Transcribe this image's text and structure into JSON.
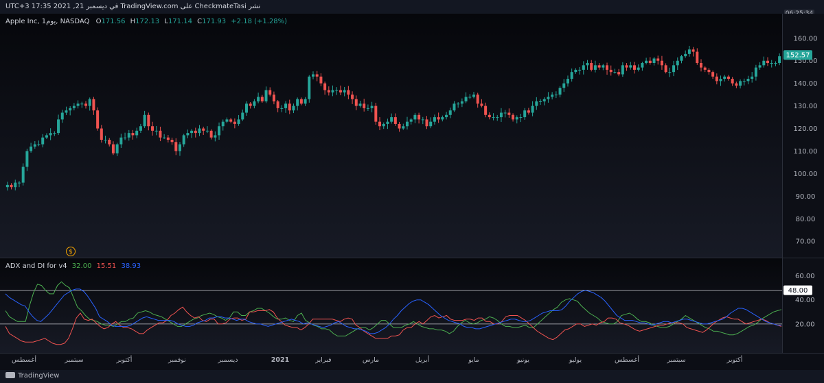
{
  "header": {
    "title": "نشر CheckmateTasi على TradingView.com في ديسمبر 21, 2021 17:35 UTC+3",
    "clock": "06:25:34"
  },
  "legend": {
    "symbol": "Apple Inc, 1يوم, NASDAQ",
    "o_label": "O",
    "o_value": "171.56",
    "h_label": "H",
    "h_value": "172.13",
    "l_label": "L",
    "l_value": "171.14",
    "c_label": "C",
    "c_value": "171.93",
    "change": "+2.18 (+1.28%)"
  },
  "indicator": {
    "name": "ADX and DI for v4",
    "adx": "32.00",
    "di_minus": "15.51",
    "di_plus": "38.93"
  },
  "footer": {
    "brand": "TradingView"
  },
  "colors": {
    "up": "#26a69a",
    "down": "#ef5350",
    "adx": "#4caf50",
    "dim": "#f05350",
    "dip": "#2962ff"
  },
  "chart_data": [
    {
      "type": "candlestick",
      "title": "Apple Inc, 1يوم, NASDAQ",
      "ylim": [
        64,
        166
      ],
      "y_ticks": [
        "160.00",
        "150.00",
        "140.00",
        "130.00",
        "120.00",
        "110.00",
        "100.00",
        "90.00",
        "80.00",
        "70.00"
      ],
      "y_tick_values": [
        160,
        150,
        140,
        130,
        120,
        110,
        100,
        90,
        80,
        70
      ],
      "last_price": "152.57",
      "x_labels": [
        "أغسطس",
        "سبتمبر",
        "أكتوبر",
        "نوفمبر",
        "ديسمبر",
        "2021",
        "فبراير",
        "مارس",
        "أبريل",
        "مايو",
        "يونيو",
        "يوليو",
        "أغسطس",
        "سبتمبر",
        "أكتوبر"
      ],
      "closes": [
        95,
        94,
        96,
        96,
        103,
        110,
        112,
        113,
        113,
        116,
        117,
        118,
        118,
        124,
        127,
        128,
        129,
        130,
        131,
        131,
        130,
        133,
        128,
        120,
        115,
        115,
        113,
        109,
        113,
        116,
        116,
        118,
        117,
        119,
        121,
        126,
        121,
        119,
        119,
        116,
        116,
        115,
        114,
        110,
        113,
        117,
        118,
        119,
        118,
        120,
        119,
        119,
        116,
        117,
        121,
        123,
        124,
        123,
        122,
        124,
        127,
        131,
        130,
        132,
        134,
        132,
        137,
        135,
        132,
        129,
        129,
        131,
        128,
        130,
        133,
        131,
        133,
        143,
        144,
        143,
        140,
        137,
        136,
        137,
        137,
        136,
        137,
        135,
        133,
        130,
        131,
        129,
        129,
        130,
        123,
        121,
        122,
        123,
        125,
        122,
        120,
        121,
        123,
        124,
        126,
        124,
        124,
        121,
        123,
        125,
        124,
        125,
        126,
        128,
        131,
        131,
        132,
        134,
        134,
        135,
        131,
        130,
        126,
        125,
        125,
        125,
        127,
        127,
        126,
        124,
        125,
        125,
        128,
        127,
        130,
        132,
        132,
        133,
        134,
        135,
        135,
        138,
        140,
        142,
        145,
        146,
        146,
        148,
        149,
        146,
        148,
        147,
        148,
        146,
        145,
        145,
        144,
        148,
        147,
        148,
        146,
        147,
        149,
        150,
        149,
        151,
        150,
        148,
        145,
        145,
        148,
        150,
        152,
        153,
        155,
        154,
        149,
        147,
        146,
        145,
        143,
        141,
        142,
        143,
        142,
        140,
        139,
        141,
        141,
        142,
        143,
        147,
        148,
        150,
        149,
        149,
        149,
        152
      ]
    },
    {
      "type": "line",
      "title": "ADX and DI for v4",
      "ylim": [
        0,
        66
      ],
      "y_ticks": [
        "60.00",
        "40.00",
        "20.00"
      ],
      "y_tick_values": [
        60,
        40,
        20
      ],
      "levels": [
        48,
        20
      ],
      "level_label": "48.00",
      "series": [
        {
          "name": "32.00",
          "values": [
            31,
            26,
            24,
            22,
            22,
            22,
            35,
            46,
            53,
            52,
            48,
            45,
            45,
            52,
            55,
            52,
            50,
            42,
            34,
            31,
            27,
            24,
            23,
            22,
            20,
            19,
            19,
            18,
            20,
            22,
            22,
            24,
            25,
            29,
            30,
            31,
            30,
            28,
            27,
            26,
            24,
            22,
            20,
            18,
            18,
            20,
            22,
            24,
            25,
            27,
            28,
            29,
            28,
            26,
            25,
            23,
            25,
            30,
            30,
            27,
            27,
            30,
            31,
            33,
            33,
            31,
            29,
            26,
            24,
            24,
            25,
            23,
            22,
            27,
            29,
            23,
            21,
            19,
            18,
            16,
            16,
            15,
            12,
            10,
            10,
            10,
            12,
            14,
            16,
            17,
            17,
            15,
            17,
            20,
            23,
            23,
            20,
            17,
            17,
            17,
            19,
            20,
            22,
            20,
            18,
            17,
            16,
            16,
            15,
            15,
            14,
            12,
            14,
            18,
            21,
            23,
            21,
            20,
            21,
            23,
            24,
            26,
            25,
            23,
            20,
            18,
            18,
            17,
            17,
            18,
            19,
            17,
            17,
            20,
            23,
            26,
            29,
            32,
            34,
            38,
            40,
            41,
            40,
            39,
            35,
            32,
            29,
            27,
            25,
            22,
            21,
            20,
            20,
            22,
            27,
            28,
            29,
            27,
            24,
            22,
            22,
            21,
            19,
            18,
            17,
            17,
            18,
            20,
            22,
            24,
            27,
            25,
            23,
            21,
            19,
            17,
            16,
            14,
            14,
            13,
            12,
            11,
            11,
            12,
            14,
            16,
            18,
            19,
            21,
            24,
            26,
            28,
            30,
            31,
            32
          ]
        },
        {
          "name": "15.51",
          "values": [
            18,
            12,
            10,
            8,
            6,
            5,
            5,
            5,
            6,
            7,
            8,
            6,
            4,
            3,
            3,
            4,
            8,
            16,
            25,
            29,
            24,
            23,
            24,
            21,
            18,
            16,
            17,
            20,
            22,
            19,
            17,
            17,
            16,
            14,
            12,
            12,
            15,
            17,
            19,
            21,
            21,
            23,
            27,
            29,
            32,
            34,
            30,
            27,
            25,
            26,
            23,
            22,
            24,
            24,
            20,
            20,
            21,
            24,
            25,
            25,
            23,
            24,
            30,
            30,
            31,
            31,
            31,
            32,
            30,
            25,
            22,
            19,
            18,
            17,
            17,
            15,
            17,
            20,
            24,
            24,
            24,
            24,
            24,
            24,
            23,
            22,
            24,
            25,
            24,
            19,
            17,
            14,
            12,
            10,
            8,
            8,
            8,
            8,
            10,
            10,
            11,
            15,
            17,
            17,
            20,
            22,
            20,
            23,
            26,
            27,
            25,
            26,
            27,
            24,
            23,
            23,
            23,
            24,
            24,
            23,
            25,
            25,
            22,
            22,
            20,
            20,
            22,
            26,
            27,
            27,
            27,
            25,
            23,
            20,
            17,
            14,
            12,
            10,
            8,
            7,
            9,
            12,
            15,
            16,
            18,
            20,
            20,
            18,
            19,
            20,
            19,
            21,
            22,
            25,
            25,
            24,
            21,
            20,
            19,
            17,
            15,
            14,
            15,
            16,
            17,
            18,
            19,
            19,
            20,
            21,
            21,
            21,
            20,
            17,
            16,
            15,
            14,
            13,
            15,
            18,
            21,
            23,
            25,
            26,
            25,
            24,
            24,
            22,
            20,
            21,
            22,
            23,
            24,
            23,
            21,
            20,
            19,
            18
          ]
        },
        {
          "name": "38.93",
          "values": [
            45,
            42,
            40,
            38,
            36,
            35,
            30,
            26,
            23,
            22,
            25,
            28,
            32,
            36,
            40,
            44,
            46,
            48,
            49,
            49,
            47,
            43,
            38,
            33,
            26,
            24,
            22,
            19,
            18,
            18,
            18,
            18,
            19,
            21,
            23,
            25,
            26,
            25,
            24,
            23,
            23,
            23,
            23,
            22,
            20,
            19,
            18,
            18,
            19,
            21,
            22,
            23,
            25,
            25,
            26,
            26,
            25,
            25,
            24,
            23,
            24,
            24,
            22,
            21,
            20,
            20,
            19,
            18,
            19,
            20,
            21,
            22,
            23,
            24,
            23,
            22,
            20,
            21,
            20,
            19,
            18,
            17,
            18,
            19,
            21,
            22,
            20,
            18,
            17,
            16,
            16,
            15,
            14,
            12,
            12,
            13,
            15,
            17,
            20,
            24,
            27,
            31,
            34,
            37,
            39,
            40,
            40,
            38,
            36,
            33,
            30,
            27,
            25,
            23,
            22,
            21,
            20,
            18,
            17,
            17,
            16,
            16,
            17,
            18,
            19,
            20,
            21,
            22,
            23,
            24,
            24,
            23,
            22,
            22,
            23,
            25,
            27,
            29,
            30,
            31,
            31,
            31,
            32,
            35,
            39,
            42,
            45,
            47,
            48,
            47,
            46,
            44,
            42,
            39,
            35,
            31,
            27,
            25,
            23,
            23,
            23,
            22,
            21,
            21,
            20,
            19,
            20,
            21,
            22,
            22,
            21,
            22,
            23,
            24,
            24,
            23,
            22,
            21,
            20,
            20,
            21,
            22,
            23,
            24,
            26,
            29,
            31,
            33,
            33,
            32,
            30,
            28,
            26,
            24,
            22,
            21,
            20,
            19,
            19
          ]
        }
      ]
    }
  ]
}
